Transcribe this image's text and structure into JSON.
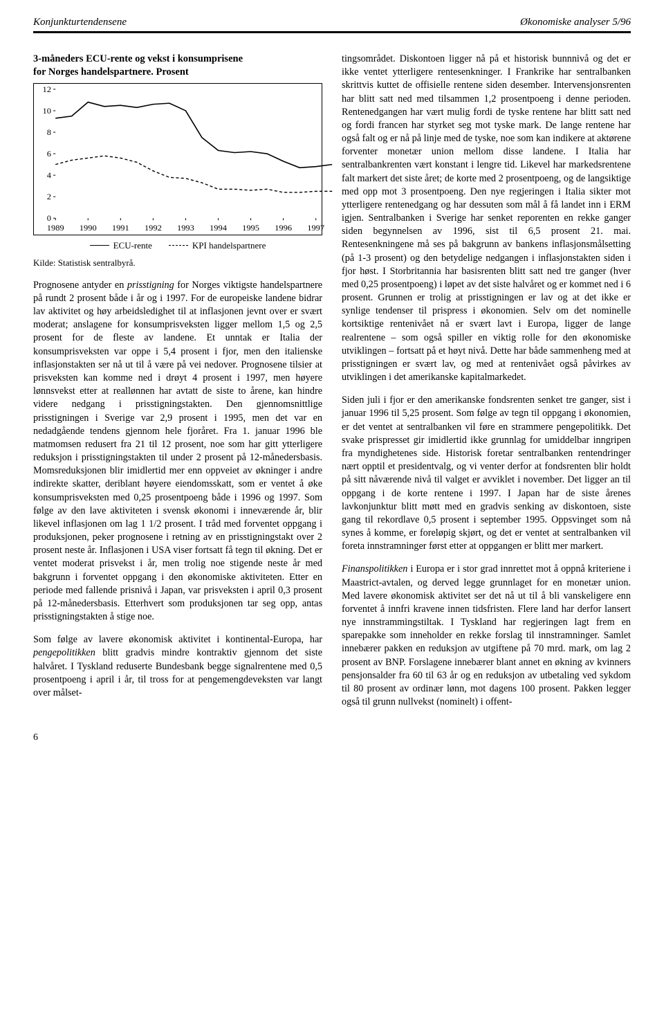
{
  "header": {
    "left": "Konjunkturtendensene",
    "right": "Økonomiske analyser 5/96"
  },
  "chart": {
    "title_line1": "3-måneders ECU-rente og vekst i konsumprisene",
    "title_line2": "for Norges handelspartnere. Prosent",
    "type": "line",
    "xlim": [
      1989,
      1997
    ],
    "ylim": [
      0,
      12
    ],
    "xticks": [
      1989,
      1990,
      1991,
      1992,
      1993,
      1994,
      1995,
      1996,
      1997
    ],
    "yticks": [
      0,
      2,
      4,
      6,
      8,
      10,
      12
    ],
    "series": [
      {
        "name": "ECU-rente",
        "style": "solid",
        "color": "#000000",
        "width": 1.6,
        "points": [
          [
            1989.0,
            9.3
          ],
          [
            1989.5,
            9.5
          ],
          [
            1990.0,
            10.8
          ],
          [
            1990.5,
            10.4
          ],
          [
            1991.0,
            10.5
          ],
          [
            1991.5,
            10.3
          ],
          [
            1992.0,
            10.6
          ],
          [
            1992.5,
            10.7
          ],
          [
            1993.0,
            10.0
          ],
          [
            1993.5,
            7.5
          ],
          [
            1994.0,
            6.3
          ],
          [
            1994.5,
            6.1
          ],
          [
            1995.0,
            6.2
          ],
          [
            1995.5,
            6.0
          ],
          [
            1996.0,
            5.3
          ],
          [
            1996.5,
            4.7
          ],
          [
            1997.0,
            4.8
          ],
          [
            1997.5,
            5.0
          ]
        ]
      },
      {
        "name": "KPI handelspartnere",
        "style": "dashed",
        "color": "#000000",
        "width": 1.4,
        "points": [
          [
            1989.0,
            5.0
          ],
          [
            1989.5,
            5.4
          ],
          [
            1990.0,
            5.6
          ],
          [
            1990.5,
            5.8
          ],
          [
            1991.0,
            5.6
          ],
          [
            1991.5,
            5.2
          ],
          [
            1992.0,
            4.4
          ],
          [
            1992.5,
            3.8
          ],
          [
            1993.0,
            3.7
          ],
          [
            1993.5,
            3.3
          ],
          [
            1994.0,
            2.7
          ],
          [
            1994.5,
            2.7
          ],
          [
            1995.0,
            2.6
          ],
          [
            1995.5,
            2.7
          ],
          [
            1996.0,
            2.4
          ],
          [
            1996.5,
            2.4
          ],
          [
            1997.0,
            2.5
          ],
          [
            1997.5,
            2.5
          ]
        ]
      }
    ],
    "legend": [
      {
        "label": "ECU-rente",
        "style": "solid"
      },
      {
        "label": "KPI handelspartnere",
        "style": "dashed"
      }
    ],
    "source": "Kilde: Statistisk sentralbyrå.",
    "background_color": "#ffffff",
    "axis_color": "#000000",
    "label_fontsize": 12
  },
  "left_paras": [
    "Prognosene antyder en <span class=\"italic\">prisstigning</span> for Norges viktigste handelspartnere på rundt 2 prosent både i år og i 1997. For de europeiske landene bidrar lav aktivitet og høy arbeidsledighet til at inflasjonen jevnt over er svært moderat; anslagene for konsumprisveksten ligger mellom 1,5 og 2,5 prosent for de fleste av landene. Et unntak er Italia der konsumprisveksten var oppe i 5,4 prosent i fjor, men den italienske inflasjonstakten ser nå ut til å være på vei nedover. Prognosene tilsier at prisveksten kan komme ned i drøyt 4 prosent i 1997, men høyere lønnsvekst etter at reallønnen har avtatt de siste to årene, kan hindre videre nedgang i prisstigningstakten. Den gjennomsnittlige prisstigningen i Sverige var 2,9 prosent i 1995, men det var en nedadgående tendens gjennom hele fjoråret. Fra 1. januar 1996 ble matmomsen redusert fra 21 til 12 prosent, noe som har gitt ytterligere reduksjon i prisstigningstakten til under 2 prosent på 12-månedersbasis. Momsreduksjonen blir imidlertid mer enn oppveiet av økninger i andre indirekte skatter, deriblant høyere eiendomsskatt, som er ventet å øke konsumprisveksten med 0,25 prosentpoeng både i 1996 og 1997. Som følge av den lave aktiviteten i svensk økonomi i inneværende år, blir likevel inflasjonen om lag 1 1/2 prosent. I tråd med forventet oppgang i produksjonen, peker prognosene i retning av en prisstigningstakt over 2 prosent neste år. Inflasjonen i USA viser fortsatt få tegn til økning. Det er ventet moderat prisvekst i år, men trolig noe stigende neste år med bakgrunn i forventet oppgang i den økonomiske aktiviteten. Etter en periode med fallende prisnivå i Japan, var prisveksten i april 0,3 prosent på 12-månedersbasis. Etterhvert som produksjonen tar seg opp, antas prisstigningstakten å stige noe.",
    "Som følge av lavere økonomisk aktivitet i kontinental-Europa, har <span class=\"italic\">pengepolitikken</span> blitt gradvis mindre kontraktiv gjennom det siste halvåret. I Tyskland reduserte Bundesbank begge signalrentene med 0,5 prosentpoeng i april i år, til tross for at pengemengdeveksten var langt over målset-"
  ],
  "right_paras": [
    "tingsområdet. Diskontoen ligger nå på et historisk bunnnivå og det er ikke ventet ytterligere rentesenkninger. I Frankrike har sentralbanken skrittvis kuttet de offisielle rentene siden desember. Intervensjonsrenten har blitt satt ned med tilsammen 1,2 prosentpoeng i denne perioden. Rentenedgangen har vært mulig fordi de tyske rentene har blitt satt ned og fordi francen har styrket seg mot tyske mark. De lange rentene har også falt og er nå på linje med de tyske, noe som kan indikere at aktørene forventer monetær union mellom disse landene. I Italia har sentralbankrenten vært konstant i lengre tid. Likevel har markedsrentene falt markert det siste året; de korte med 2 prosentpoeng, og de langsiktige med opp mot 3 prosentpoeng. Den nye regjeringen i Italia sikter mot ytterligere rentenedgang og har dessuten som mål å få landet inn i ERM igjen. Sentralbanken i Sverige har senket reporenten en rekke ganger siden begynnelsen av 1996, sist til 6,5 prosent 21. mai. Rentesenkningene må ses på bakgrunn av bankens inflasjonsmålsetting (på 1-3 prosent) og den betydelige nedgangen i inflasjonstakten siden i fjor høst. I Storbritannia har basisrenten blitt satt ned tre ganger (hver med 0,25 prosentpoeng) i løpet av det siste halvåret og er kommet ned i 6 prosent. Grunnen er trolig at prisstigningen er lav og at det ikke er synlige tendenser til prispress i økonomien. Selv om det nominelle kortsiktige rentenivået nå er svært lavt i Europa, ligger de lange realrentene – som også spiller en viktig rolle for den økonomiske utviklingen – fortsatt på et høyt nivå. Dette har både sammenheng med at prisstigningen er svært lav, og med at rentenivået også påvirkes av utviklingen i det amerikanske kapitalmarkedet.",
    "Siden juli i fjor er den amerikanske fondsrenten senket tre ganger, sist i januar 1996 til 5,25 prosent. Som følge av tegn til oppgang i økonomien, er det ventet at sentralbanken vil føre en strammere pengepolitikk. Det svake prispresset gir imidlertid ikke grunnlag for umiddelbar inngripen fra myndighetenes side. Historisk foretar sentralbanken rentendringer nært opptil et presidentvalg, og vi venter derfor at fondsrenten blir holdt på sitt nåværende nivå til valget er avviklet i november. Det ligger an til oppgang i de korte rentene i 1997. I Japan har de siste årenes lavkonjunktur blitt møtt med en gradvis senking av diskontoen, siste gang til rekordlave 0,5 prosent i september 1995. Oppsvinget som nå synes å komme, er foreløpig skjørt, og det er ventet at sentralbanken vil foreta innstramninger først etter at oppgangen er blitt mer markert.",
    "<span class=\"italic\">Finanspolitikken</span> i Europa er i stor grad innrettet mot å oppnå kriteriene i Maastrict-avtalen, og derved legge grunnlaget for en monetær union. Med lavere økonomisk aktivitet ser det nå ut til å bli vanskeligere enn forventet å innfri kravene innen tidsfristen. Flere land har derfor lansert nye innstrammingstiltak. I Tyskland har regjeringen lagt frem en sparepakke som inneholder en rekke forslag til innstramninger. Samlet innebærer pakken en reduksjon av utgiftene på 70 mrd. mark, om lag 2 prosent av BNP. Forslagene innebærer blant annet en økning av kvinners pensjonsalder fra 60 til 63 år og en reduksjon av utbetaling ved sykdom til 80 prosent av ordinær lønn, mot dagens 100 prosent. Pakken legger også til grunn nullvekst (nominelt) i offent-"
  ],
  "page_number": "6"
}
